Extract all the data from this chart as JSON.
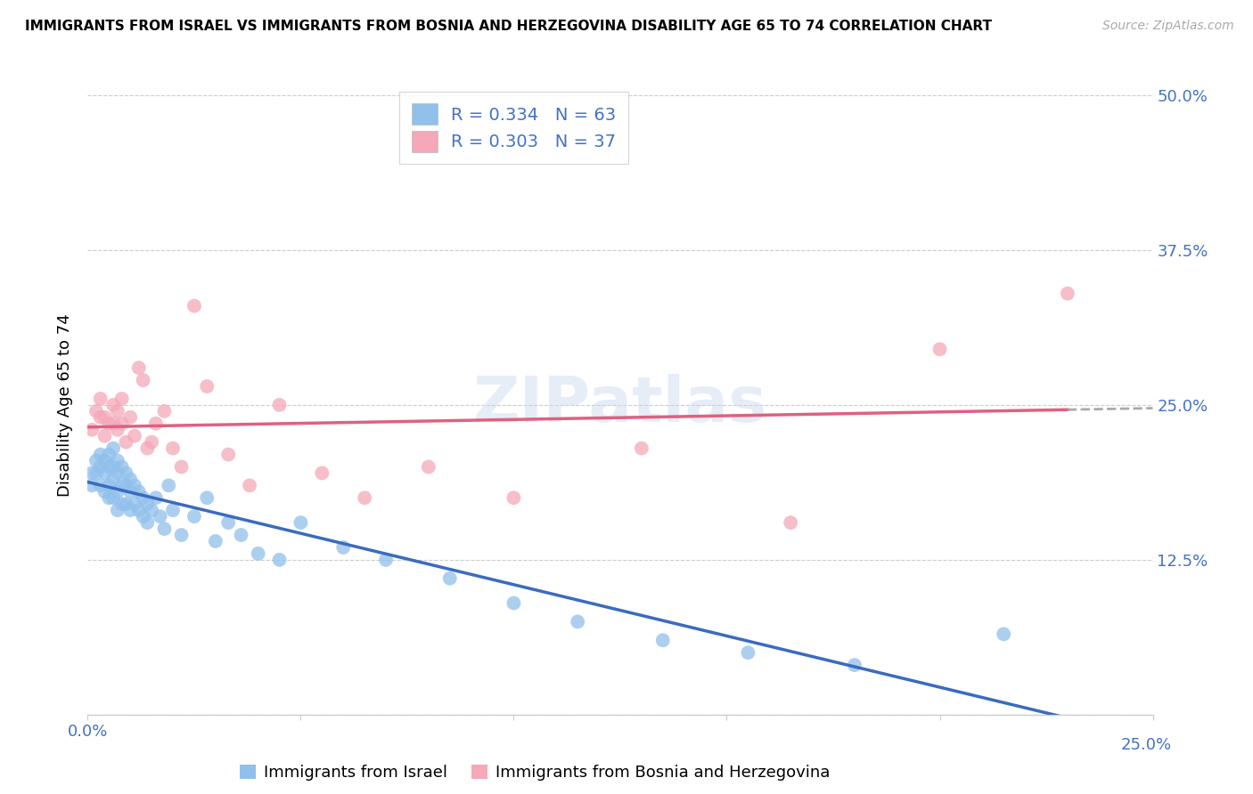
{
  "title": "IMMIGRANTS FROM ISRAEL VS IMMIGRANTS FROM BOSNIA AND HERZEGOVINA DISABILITY AGE 65 TO 74 CORRELATION CHART",
  "source": "Source: ZipAtlas.com",
  "ylabel": "Disability Age 65 to 74",
  "x_min": 0.0,
  "x_max": 0.25,
  "y_min": 0.0,
  "y_max": 0.5,
  "R_israel": 0.334,
  "N_israel": 63,
  "R_bosnia": 0.303,
  "N_bosnia": 37,
  "color_israel": "#90C0EC",
  "color_bosnia": "#F4A8B8",
  "line_color_israel": "#3A6BBF",
  "line_color_bosnia": "#E06080",
  "line_color_dash": "#AAAAAA",
  "israel_x": [
    0.001,
    0.001,
    0.002,
    0.002,
    0.003,
    0.003,
    0.003,
    0.004,
    0.004,
    0.004,
    0.005,
    0.005,
    0.005,
    0.005,
    0.006,
    0.006,
    0.006,
    0.006,
    0.007,
    0.007,
    0.007,
    0.007,
    0.008,
    0.008,
    0.008,
    0.009,
    0.009,
    0.009,
    0.01,
    0.01,
    0.01,
    0.011,
    0.011,
    0.012,
    0.012,
    0.013,
    0.013,
    0.014,
    0.014,
    0.015,
    0.016,
    0.017,
    0.018,
    0.019,
    0.02,
    0.022,
    0.025,
    0.028,
    0.03,
    0.033,
    0.036,
    0.04,
    0.045,
    0.05,
    0.06,
    0.07,
    0.085,
    0.1,
    0.115,
    0.135,
    0.155,
    0.18,
    0.215
  ],
  "israel_y": [
    0.195,
    0.185,
    0.205,
    0.195,
    0.21,
    0.2,
    0.185,
    0.205,
    0.195,
    0.18,
    0.21,
    0.2,
    0.185,
    0.175,
    0.215,
    0.2,
    0.19,
    0.175,
    0.205,
    0.195,
    0.18,
    0.165,
    0.2,
    0.185,
    0.17,
    0.195,
    0.185,
    0.17,
    0.19,
    0.18,
    0.165,
    0.185,
    0.17,
    0.18,
    0.165,
    0.175,
    0.16,
    0.17,
    0.155,
    0.165,
    0.175,
    0.16,
    0.15,
    0.185,
    0.165,
    0.145,
    0.16,
    0.175,
    0.14,
    0.155,
    0.145,
    0.13,
    0.125,
    0.155,
    0.135,
    0.125,
    0.11,
    0.09,
    0.075,
    0.06,
    0.05,
    0.04,
    0.065
  ],
  "bosnia_x": [
    0.001,
    0.002,
    0.003,
    0.003,
    0.004,
    0.004,
    0.005,
    0.006,
    0.006,
    0.007,
    0.007,
    0.008,
    0.008,
    0.009,
    0.01,
    0.011,
    0.012,
    0.013,
    0.014,
    0.015,
    0.016,
    0.018,
    0.02,
    0.022,
    0.025,
    0.028,
    0.033,
    0.038,
    0.045,
    0.055,
    0.065,
    0.08,
    0.1,
    0.13,
    0.165,
    0.2,
    0.23
  ],
  "bosnia_y": [
    0.23,
    0.245,
    0.24,
    0.255,
    0.225,
    0.24,
    0.235,
    0.25,
    0.235,
    0.245,
    0.23,
    0.255,
    0.235,
    0.22,
    0.24,
    0.225,
    0.28,
    0.27,
    0.215,
    0.22,
    0.235,
    0.245,
    0.215,
    0.2,
    0.33,
    0.265,
    0.21,
    0.185,
    0.25,
    0.195,
    0.175,
    0.2,
    0.175,
    0.215,
    0.155,
    0.295,
    0.34
  ]
}
